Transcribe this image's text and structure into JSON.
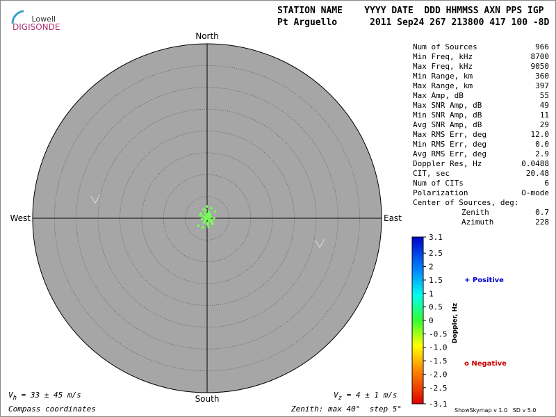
{
  "logo": {
    "top": "Lowell",
    "bottom": "DIGISONDE"
  },
  "header": {
    "labels": "STATION NAME    YYYY DATE  DDD HHMMSS AXN PPS IGP",
    "values": "Pt Arguello      2011 Sep24 267 213800 417 100 -8D"
  },
  "compass": {
    "north": "North",
    "south": "South",
    "east": "East",
    "west": "West"
  },
  "skymap": {
    "zenith_label": "Zenith: max",
    "zenith_max": 40,
    "unit": "°",
    "step_label": "step",
    "step": 5,
    "color": "#77ff55",
    "sources": {
      "x": [
        -0.6,
        -0.3,
        0,
        0.3,
        0.6,
        -0.9,
        0.9,
        -0.5,
        0.5,
        0,
        -0.2,
        0.2,
        -1.2,
        1.1,
        0.1,
        -0.4,
        0.4,
        -0.7,
        0.7,
        0,
        -1.6,
        1.6,
        -0.8,
        1.3,
        -2.0,
        0.3,
        -1.0,
        0.9,
        1.8,
        -0.3,
        0.2,
        -0.1,
        1.0,
        -1.4,
        0.6,
        -0.6
      ],
      "y": [
        0.2,
        -0.3,
        0.4,
        0.1,
        -0.2,
        0.5,
        0.3,
        -0.7,
        -0.6,
        -0.1,
        0.8,
        1.0,
        -0.2,
        -0.5,
        -1.1,
        1.2,
        1.4,
        -1.0,
        0.9,
        2.7,
        0.6,
        0.0,
        2.0,
        -1.3,
        -1.7,
        -2.0,
        -2.1,
        2.3,
        1.5,
        1.8,
        -1.5,
        0.0,
        -0.9,
        1.1,
        0.6,
        0.0
      ]
    }
  },
  "stats": {
    "rows": [
      [
        "Num of Sources",
        "966"
      ],
      [
        "Min Freq, kHz",
        "8700"
      ],
      [
        "Max Freq, kHz",
        "9050"
      ],
      [
        "Min Range, km",
        "360"
      ],
      [
        "Max Range, km",
        "397"
      ],
      [
        "Max Amp, dB",
        "55"
      ],
      [
        "Max SNR Amp, dB",
        "49"
      ],
      [
        "Min SNR Amp, dB",
        "11"
      ],
      [
        "Avg SNR Amp, dB",
        "29"
      ],
      [
        "Max RMS Err, deg",
        "12.0"
      ],
      [
        "Min RMS Err, deg",
        "0.0"
      ],
      [
        "Avg RMS Err, deg",
        "2.9"
      ],
      [
        "Doppler Res, Hz",
        "0.0488"
      ],
      [
        "CIT, sec",
        "20.48"
      ],
      [
        "Num of CITs",
        "6"
      ],
      [
        "Polarization",
        "O-mode"
      ]
    ],
    "center_label": "Center of Sources, deg:",
    "center_rows": [
      [
        "Zenith",
        "0.7"
      ],
      [
        "Azimuth",
        "228"
      ]
    ]
  },
  "colorbar": {
    "label": "Doppler, Hz",
    "lim": [
      -3.1,
      3.1
    ],
    "ticks": [
      3.1,
      2.5,
      2,
      1.5,
      1,
      0.5,
      0,
      -0.5,
      {
        "value": -1,
        "label": "-1.0"
      },
      -1.5,
      {
        "value": -2,
        "label": "-2.0"
      },
      -2.5,
      -3.1
    ],
    "positive": "+ Positive",
    "negative": "o Negative"
  },
  "footer": {
    "vh": {
      "symbol": "V",
      "sub": "h",
      "text": "= 33 ± 45 m/s"
    },
    "vz": {
      "symbol": "V",
      "sub": "z",
      "text": "= 4 ± 1 m/s"
    },
    "coords": "Compass coordinates",
    "version": "ShowSkymap v 1.0   SD v 5.0"
  }
}
